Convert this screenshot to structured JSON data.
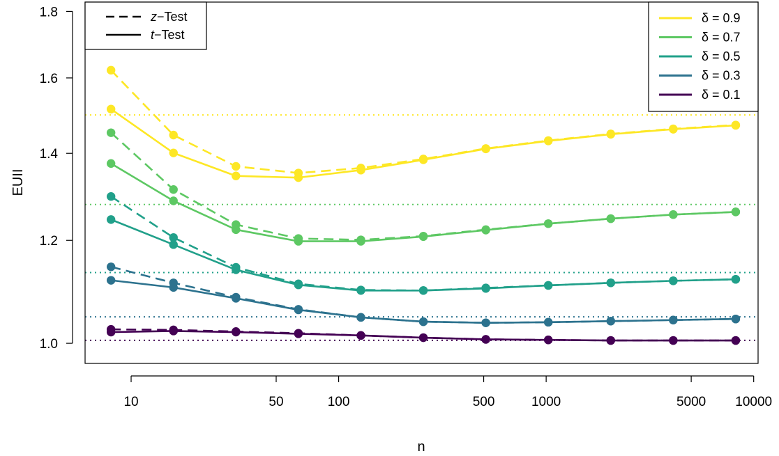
{
  "chart_data": {
    "type": "line",
    "title": "",
    "xlabel": "n",
    "ylabel": "EUII",
    "x_scale": "log",
    "y_scale": "log",
    "xlim": [
      6,
      10500
    ],
    "ylim": [
      0.965,
      1.83
    ],
    "x_ticks": [
      10,
      50,
      100,
      500,
      1000,
      5000,
      10000
    ],
    "x_tick_labels": [
      "10",
      "50",
      "100",
      "500",
      "1000",
      "5000",
      "10000"
    ],
    "y_ticks": [
      1.0,
      1.2,
      1.4,
      1.6,
      1.8
    ],
    "y_tick_labels": [
      "1.0",
      "1.2",
      "1.4",
      "1.6",
      "1.8"
    ],
    "grid": false,
    "x": [
      8,
      16,
      32,
      64,
      128,
      256,
      512,
      1024,
      2048,
      4096,
      8192
    ],
    "series": [
      {
        "name": "δ = 0.9",
        "delta": 0.9,
        "test": "z",
        "color": "#FDE725",
        "values": [
          1.622,
          1.446,
          1.368,
          1.352,
          1.364,
          1.386,
          1.412,
          1.432,
          1.449,
          1.462,
          1.472
        ]
      },
      {
        "name": "δ = 0.9",
        "delta": 0.9,
        "test": "t",
        "color": "#FDE725",
        "values": [
          1.514,
          1.401,
          1.345,
          1.341,
          1.359,
          1.384,
          1.411,
          1.431,
          1.448,
          1.461,
          1.471
        ]
      },
      {
        "name": "δ = 0.7",
        "delta": 0.7,
        "test": "z",
        "color": "#5DC863",
        "values": [
          1.452,
          1.313,
          1.234,
          1.204,
          1.201,
          1.209,
          1.223,
          1.236,
          1.247,
          1.256,
          1.262
        ]
      },
      {
        "name": "δ = 0.7",
        "delta": 0.7,
        "test": "t",
        "color": "#5DC863",
        "values": [
          1.375,
          1.287,
          1.223,
          1.198,
          1.198,
          1.208,
          1.222,
          1.236,
          1.247,
          1.256,
          1.262
        ]
      },
      {
        "name": "δ = 0.5",
        "delta": 0.5,
        "test": "z",
        "color": "#21A08A",
        "values": [
          1.297,
          1.206,
          1.144,
          1.111,
          1.099,
          1.098,
          1.103,
          1.108,
          1.113,
          1.117,
          1.12
        ]
      },
      {
        "name": "δ = 0.5",
        "delta": 0.5,
        "test": "t",
        "color": "#21A08A",
        "values": [
          1.245,
          1.191,
          1.139,
          1.109,
          1.098,
          1.098,
          1.102,
          1.108,
          1.113,
          1.117,
          1.12
        ]
      },
      {
        "name": "δ = 0.3",
        "delta": 0.3,
        "test": "z",
        "color": "#2C728E",
        "values": [
          1.145,
          1.113,
          1.085,
          1.062,
          1.047,
          1.039,
          1.037,
          1.038,
          1.04,
          1.042,
          1.044
        ]
      },
      {
        "name": "δ = 0.3",
        "delta": 0.3,
        "test": "t",
        "color": "#2C728E",
        "values": [
          1.118,
          1.104,
          1.083,
          1.061,
          1.047,
          1.039,
          1.037,
          1.038,
          1.04,
          1.042,
          1.044
        ]
      },
      {
        "name": "δ = 0.1",
        "delta": 0.1,
        "test": "z",
        "color": "#440154",
        "values": [
          1.025,
          1.024,
          1.021,
          1.018,
          1.014,
          1.01,
          1.007,
          1.006,
          1.005,
          1.005,
          1.005
        ]
      },
      {
        "name": "δ = 0.1",
        "delta": 0.1,
        "test": "t",
        "color": "#440154",
        "values": [
          1.02,
          1.022,
          1.02,
          1.017,
          1.014,
          1.01,
          1.007,
          1.006,
          1.005,
          1.005,
          1.005
        ]
      }
    ],
    "reference_lines": [
      {
        "y": 1.4985,
        "color": "#FDE725",
        "style": "dotted"
      },
      {
        "y": 1.2786,
        "color": "#5DC863",
        "style": "dotted"
      },
      {
        "y": 1.1334,
        "color": "#21A08A",
        "style": "dotted"
      },
      {
        "y": 1.0479,
        "color": "#2C728E",
        "style": "dotted"
      },
      {
        "y": 1.0053,
        "color": "#440154",
        "style": "dotted"
      }
    ],
    "legend_tests": {
      "placement": "top-left",
      "entries": [
        {
          "italic": "z",
          "rest": "−Test",
          "line_style": "dashed"
        },
        {
          "italic": "t",
          "rest": "−Test",
          "line_style": "solid"
        }
      ]
    },
    "legend_deltas": {
      "placement": "top-right",
      "entries": [
        {
          "symbol": "δ",
          "rest": " = 0.9",
          "color": "#FDE725"
        },
        {
          "symbol": "δ",
          "rest": " = 0.7",
          "color": "#5DC863"
        },
        {
          "symbol": "δ",
          "rest": " = 0.5",
          "color": "#21A08A"
        },
        {
          "symbol": "δ",
          "rest": " = 0.3",
          "color": "#2C728E"
        },
        {
          "symbol": "δ",
          "rest": " = 0.1",
          "color": "#440154"
        }
      ]
    }
  }
}
